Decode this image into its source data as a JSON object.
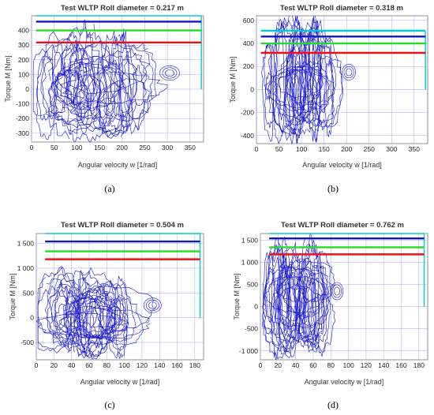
{
  "chart_data": [
    {
      "type": "line",
      "title": "Test  WLTP  Roll diameter = 0.217  m",
      "xlabel": "Angular velocity w [1/rad]",
      "ylabel": "Torque M [Nm]",
      "caption": "(a)",
      "xlim": [
        0,
        380
      ],
      "ylim": [
        -360,
        500
      ],
      "xticks": [
        0,
        50,
        100,
        150,
        200,
        250,
        300,
        350
      ],
      "yticks": [
        -300,
        -200,
        -100,
        0,
        100,
        200,
        300,
        400
      ],
      "tick_labels_y": [
        "-300",
        "-200",
        "-100",
        "0",
        "100",
        "200",
        "300",
        "400"
      ],
      "grid": true,
      "limit_lines": [
        {
          "color": "#1414c8",
          "y": 460,
          "x_from": 10,
          "x_to": 375
        },
        {
          "color": "#22dd22",
          "y": 400,
          "x_from": 10,
          "x_to": 375
        },
        {
          "color": "#ee1111",
          "y": 318,
          "x_from": 10,
          "x_to": 375
        }
      ],
      "cyan_edge": {
        "color": "#00c8d8",
        "y_top": 500,
        "y_bottom": 0,
        "x": 375
      },
      "trace_color": "#1515d0",
      "trace": {
        "x_max": 335,
        "y_min": -350,
        "y_max": 440,
        "idle_loop_center": [
          305,
          110
        ],
        "idle_loop_radius": [
          22,
          50
        ]
      }
    },
    {
      "type": "line",
      "title": "Test  WLTP  Roll diameter = 0.318  m",
      "xlabel": "Angular velocity w [1/rad]",
      "ylabel": "Torque M [Nm]",
      "caption": "(b)",
      "xlim": [
        0,
        380
      ],
      "ylim": [
        -470,
        640
      ],
      "xticks": [
        0,
        50,
        100,
        150,
        200,
        250,
        300,
        350
      ],
      "yticks": [
        -400,
        -200,
        0,
        200,
        400,
        600
      ],
      "tick_labels_y": [
        "-400",
        "-200",
        "0",
        "200",
        "400",
        "600"
      ],
      "grid": true,
      "limit_lines": [
        {
          "color": "#00c8d8",
          "y": 510,
          "x_from": 10,
          "x_to": 375
        },
        {
          "color": "#1414c8",
          "y": 460,
          "x_from": 10,
          "x_to": 375
        },
        {
          "color": "#22dd22",
          "y": 400,
          "x_from": 10,
          "x_to": 375
        },
        {
          "color": "#ee1111",
          "y": 318,
          "x_from": 10,
          "x_to": 375
        }
      ],
      "cyan_edge": {
        "color": "#00c8d8",
        "y_top": 510,
        "y_bottom": 0,
        "x": 375
      },
      "trace_color": "#1515d0",
      "trace": {
        "x_max": 230,
        "y_min": -450,
        "y_max": 630,
        "idle_loop_center": [
          205,
          150
        ],
        "idle_loop_radius": [
          15,
          70
        ]
      }
    },
    {
      "type": "line",
      "title": "Test  WLTP  Roll diameter = 0.504  m",
      "xlabel": "Angular velocity w [1/rad]",
      "ylabel": "Torque M [Nm]",
      "caption": "(c)",
      "xlim": [
        0,
        190
      ],
      "ylim": [
        -850,
        1700
      ],
      "xticks": [
        0,
        20,
        40,
        60,
        80,
        100,
        120,
        140,
        160,
        180
      ],
      "yticks": [
        -500,
        0,
        500,
        1000,
        1500
      ],
      "tick_labels_y": [
        "-500",
        "0",
        "500",
        "1 000",
        "1 500"
      ],
      "grid": true,
      "limit_lines": [
        {
          "color": "#1414c8",
          "y": 1540,
          "x_from": 10,
          "x_to": 186
        },
        {
          "color": "#22dd22",
          "y": 1340,
          "x_from": 10,
          "x_to": 186
        },
        {
          "color": "#ee1111",
          "y": 1180,
          "x_from": 10,
          "x_to": 186
        }
      ],
      "cyan_edge": {
        "color": "#00c8d8",
        "y_top": 1700,
        "y_bottom": 0,
        "x": 186
      },
      "trace_color": "#1515d0",
      "trace": {
        "x_max": 145,
        "y_min": -800,
        "y_max": 990,
        "idle_loop_center": [
          132,
          250
        ],
        "idle_loop_radius": [
          10,
          150
        ]
      }
    },
    {
      "type": "line",
      "title": "Test  WLTP  Roll diameter = 0.762  m",
      "xlabel": "Angular velocity w [1/rad]",
      "ylabel": "Torque M [Nm]",
      "caption": "(d)",
      "xlim": [
        0,
        190
      ],
      "ylim": [
        -1200,
        1650
      ],
      "xticks": [
        0,
        20,
        40,
        60,
        80,
        100,
        120,
        140,
        160,
        180
      ],
      "yticks": [
        -1000,
        -500,
        0,
        500,
        1000,
        1500
      ],
      "tick_labels_y": [
        "-1 000",
        "-500",
        "0",
        "500",
        "1 000",
        "1 500"
      ],
      "grid": true,
      "limit_lines": [
        {
          "color": "#1414c8",
          "y": 1540,
          "x_from": 10,
          "x_to": 186
        },
        {
          "color": "#22dd22",
          "y": 1340,
          "x_from": 10,
          "x_to": 186
        },
        {
          "color": "#ee1111",
          "y": 1180,
          "x_from": 10,
          "x_to": 186
        }
      ],
      "cyan_edge": {
        "color": "#00c8d8",
        "y_top": 1650,
        "y_bottom": 0,
        "x": 186
      },
      "trace_color": "#1515d0",
      "trace": {
        "x_max": 100,
        "y_min": -1150,
        "y_max": 1520,
        "idle_loop_center": [
          87,
          350
        ],
        "idle_loop_radius": [
          7,
          200
        ]
      }
    }
  ]
}
